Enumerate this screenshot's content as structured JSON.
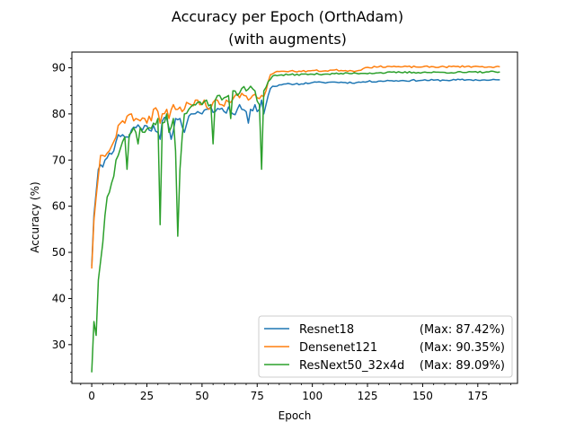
{
  "chart_data": {
    "type": "line",
    "title": "Accuracy per Epoch (OrthAdam)",
    "subtitle": "(with augments)",
    "xlabel": "Epoch",
    "ylabel": "Accuracy (%)",
    "xlim": [
      -9,
      193
    ],
    "ylim": [
      21.6,
      93.4
    ],
    "xticks": [
      0,
      25,
      50,
      75,
      100,
      125,
      150,
      175
    ],
    "yticks": [
      30,
      40,
      50,
      60,
      70,
      80,
      90
    ],
    "grid": false,
    "legend_position": "lower-right",
    "keyframes": {
      "Resnet18": [
        [
          0,
          47
        ],
        [
          1,
          58
        ],
        [
          2,
          63
        ],
        [
          3,
          68
        ],
        [
          4,
          69
        ],
        [
          5,
          68.5
        ],
        [
          6,
          70
        ],
        [
          7,
          70.5
        ],
        [
          8,
          71.5
        ],
        [
          10,
          72
        ],
        [
          11,
          74
        ],
        [
          12,
          75.5
        ],
        [
          14,
          75.5
        ],
        [
          16,
          75
        ],
        [
          18,
          76.5
        ],
        [
          20,
          77
        ],
        [
          22,
          77
        ],
        [
          24,
          77.5
        ],
        [
          26,
          76.5
        ],
        [
          28,
          77.5
        ],
        [
          30,
          76
        ],
        [
          31,
          74.5
        ],
        [
          32,
          78.5
        ],
        [
          34,
          79
        ],
        [
          35,
          77
        ],
        [
          36,
          74.5
        ],
        [
          38,
          79
        ],
        [
          40,
          79
        ],
        [
          42,
          76
        ],
        [
          44,
          79.5
        ],
        [
          46,
          80
        ],
        [
          48,
          80.5
        ],
        [
          50,
          80
        ],
        [
          52,
          81
        ],
        [
          54,
          81.5
        ],
        [
          56,
          80.5
        ],
        [
          58,
          81
        ],
        [
          60,
          80.5
        ],
        [
          62,
          81.5
        ],
        [
          64,
          80
        ],
        [
          66,
          81
        ],
        [
          67,
          82
        ],
        [
          68,
          81
        ],
        [
          70,
          80.5
        ],
        [
          71,
          78
        ],
        [
          72,
          81
        ],
        [
          74,
          82
        ],
        [
          75,
          80.5
        ],
        [
          76,
          81
        ],
        [
          77,
          83
        ],
        [
          78,
          80
        ],
        [
          79,
          82
        ],
        [
          80,
          84
        ],
        [
          81,
          85.5
        ],
        [
          82,
          86
        ],
        [
          84,
          86
        ],
        [
          86,
          86.3
        ],
        [
          90,
          86.5
        ],
        [
          95,
          86.5
        ],
        [
          100,
          86.8
        ],
        [
          105,
          86.8
        ],
        [
          110,
          86.9
        ],
        [
          115,
          86.8
        ],
        [
          120,
          86.8
        ],
        [
          125,
          87
        ],
        [
          130,
          87.1
        ],
        [
          135,
          87.2
        ],
        [
          140,
          87.2
        ],
        [
          150,
          87.3
        ],
        [
          160,
          87.3
        ],
        [
          170,
          87.4
        ],
        [
          180,
          87.3
        ],
        [
          185,
          87.4
        ]
      ],
      "Densenet121": [
        [
          0,
          46.5
        ],
        [
          1,
          57
        ],
        [
          2,
          62
        ],
        [
          3,
          66.5
        ],
        [
          4,
          71
        ],
        [
          5,
          71
        ],
        [
          7,
          71.5
        ],
        [
          9,
          73
        ],
        [
          10,
          74
        ],
        [
          11,
          75
        ],
        [
          12,
          77.5
        ],
        [
          13,
          78
        ],
        [
          14,
          78.5
        ],
        [
          15,
          78
        ],
        [
          16,
          79.5
        ],
        [
          18,
          80
        ],
        [
          19,
          78.5
        ],
        [
          20,
          79
        ],
        [
          22,
          78.5
        ],
        [
          24,
          79
        ],
        [
          25,
          78
        ],
        [
          26,
          79.5
        ],
        [
          27,
          78.5
        ],
        [
          28,
          81
        ],
        [
          30,
          80.5
        ],
        [
          31,
          78
        ],
        [
          32,
          80
        ],
        [
          34,
          81
        ],
        [
          35,
          79
        ],
        [
          37,
          82
        ],
        [
          39,
          81
        ],
        [
          41,
          80.5
        ],
        [
          43,
          82.5
        ],
        [
          45,
          82
        ],
        [
          47,
          83
        ],
        [
          49,
          82
        ],
        [
          51,
          83
        ],
        [
          53,
          81
        ],
        [
          55,
          82.5
        ],
        [
          57,
          83
        ],
        [
          59,
          82
        ],
        [
          61,
          83
        ],
        [
          63,
          82.5
        ],
        [
          65,
          84
        ],
        [
          67,
          83.5
        ],
        [
          69,
          84
        ],
        [
          71,
          83
        ],
        [
          73,
          84
        ],
        [
          75,
          83.5
        ],
        [
          77,
          84
        ],
        [
          79,
          85
        ],
        [
          80,
          87
        ],
        [
          81,
          88.5
        ],
        [
          83,
          89
        ],
        [
          85,
          89.2
        ],
        [
          90,
          89.3
        ],
        [
          95,
          89.2
        ],
        [
          100,
          89.4
        ],
        [
          105,
          89.3
        ],
        [
          110,
          89.5
        ],
        [
          115,
          89.4
        ],
        [
          120,
          89.3
        ],
        [
          123,
          89.8
        ],
        [
          125,
          90.1
        ],
        [
          130,
          90.2
        ],
        [
          135,
          90.3
        ],
        [
          140,
          90.2
        ],
        [
          150,
          90.2
        ],
        [
          160,
          90.2
        ],
        [
          170,
          90.3
        ],
        [
          180,
          90.2
        ],
        [
          185,
          90.2
        ]
      ],
      "ResNext50_32x4d": [
        [
          0,
          24
        ],
        [
          1,
          35
        ],
        [
          2,
          32
        ],
        [
          3,
          44
        ],
        [
          4,
          48
        ],
        [
          5,
          52
        ],
        [
          6,
          58
        ],
        [
          7,
          62
        ],
        [
          8,
          63
        ],
        [
          9,
          65
        ],
        [
          10,
          66.5
        ],
        [
          11,
          70
        ],
        [
          12,
          71
        ],
        [
          13,
          72.5
        ],
        [
          14,
          74
        ],
        [
          15,
          75
        ],
        [
          16,
          68
        ],
        [
          17,
          75.5
        ],
        [
          18,
          76
        ],
        [
          19,
          77
        ],
        [
          20,
          76
        ],
        [
          21,
          73.5
        ],
        [
          22,
          77
        ],
        [
          24,
          76
        ],
        [
          26,
          77
        ],
        [
          28,
          78
        ],
        [
          30,
          79
        ],
        [
          31,
          56
        ],
        [
          32,
          78
        ],
        [
          34,
          80
        ],
        [
          35,
          76
        ],
        [
          37,
          79
        ],
        [
          38,
          72
        ],
        [
          39,
          53.5
        ],
        [
          40,
          68
        ],
        [
          41,
          75
        ],
        [
          42,
          80
        ],
        [
          44,
          81
        ],
        [
          46,
          82
        ],
        [
          48,
          82.5
        ],
        [
          50,
          82
        ],
        [
          52,
          83
        ],
        [
          54,
          82
        ],
        [
          55,
          73.5
        ],
        [
          56,
          83
        ],
        [
          58,
          84
        ],
        [
          60,
          83.5
        ],
        [
          62,
          84
        ],
        [
          63,
          79
        ],
        [
          64,
          85
        ],
        [
          66,
          84
        ],
        [
          68,
          85.5
        ],
        [
          70,
          85
        ],
        [
          72,
          86
        ],
        [
          74,
          85
        ],
        [
          76,
          82
        ],
        [
          77,
          68
        ],
        [
          78,
          85
        ],
        [
          80,
          87
        ],
        [
          82,
          88.2
        ],
        [
          85,
          88.4
        ],
        [
          90,
          88.5
        ],
        [
          100,
          88.6
        ],
        [
          110,
          88.7
        ],
        [
          120,
          88.8
        ],
        [
          130,
          88.9
        ],
        [
          140,
          89
        ],
        [
          150,
          89
        ],
        [
          160,
          89
        ],
        [
          170,
          89
        ],
        [
          180,
          89.1
        ],
        [
          185,
          89.1
        ]
      ]
    },
    "series": [
      {
        "name": "Resnet18",
        "max_label": "(Max: 87.42%)",
        "color": "#1f77b4",
        "seed": 11
      },
      {
        "name": "Densenet121",
        "max_label": "(Max: 90.35%)",
        "color": "#ff7f0e",
        "seed": 23
      },
      {
        "name": "ResNext50_32x4d",
        "max_label": "(Max: 89.09%)",
        "color": "#2ca02c",
        "seed": 37
      }
    ]
  }
}
